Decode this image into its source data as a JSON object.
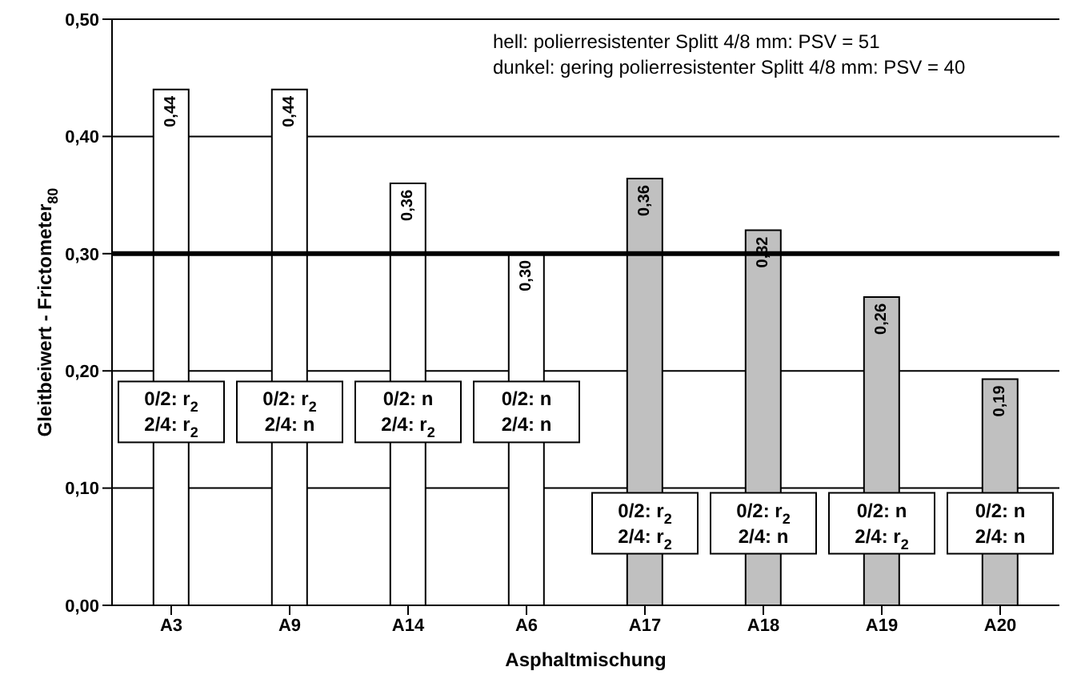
{
  "chart_data": {
    "type": "bar",
    "xlabel": "Asphaltmischung",
    "ylabel": "Gleitbeiwert - Frictometer$_{80}$",
    "categories": [
      "A3",
      "A9",
      "A14",
      "A6",
      "A17",
      "A18",
      "A19",
      "A20"
    ],
    "values": [
      0.44,
      0.44,
      0.36,
      0.3,
      0.364,
      0.32,
      0.263,
      0.193
    ],
    "value_labels": [
      "0,44",
      "0,44",
      "0,36",
      "0,30",
      "0,36",
      "0,32",
      "0,26",
      "0,19"
    ],
    "colors": [
      "#ffffff",
      "#ffffff",
      "#ffffff",
      "#ffffff",
      "#c0c0c0",
      "#c0c0c0",
      "#c0c0c0",
      "#c0c0c0"
    ],
    "ylim": [
      0,
      0.5
    ],
    "yticks": [
      {
        "value": 0,
        "label": "0,00"
      },
      {
        "value": 0.1,
        "label": "0,10"
      },
      {
        "value": 0.2,
        "label": "0,20"
      },
      {
        "value": 0.3,
        "label": "0,30"
      },
      {
        "value": 0.4,
        "label": "0,40"
      },
      {
        "value": 0.5,
        "label": "0,50"
      }
    ],
    "grid": "y",
    "ref_lines": [
      {
        "axis": "y",
        "value": 0.3,
        "color": "#000000"
      }
    ],
    "annotations": [
      "hell: polierresistenter Splitt 4/8 mm: PSV = 51",
      "dunkel: gering polierresistenter Splitt 4/8 mm: PSV = 40",
      "0/2: r$_{2}$\n2/4: r$_{2}$",
      "0/2: r$_{2}$\n2/4: n",
      "0/2: n\n2/4: r$_{2}$",
      "0/2: n\n2/4: n",
      "0/2: r$_{2}$\n2/4: r$_{2}$",
      "0/2: r$_{2}$\n2/4: n",
      "0/2: n\n2/4: r$_{2}$",
      "0/2: n\n2/4: n"
    ]
  }
}
